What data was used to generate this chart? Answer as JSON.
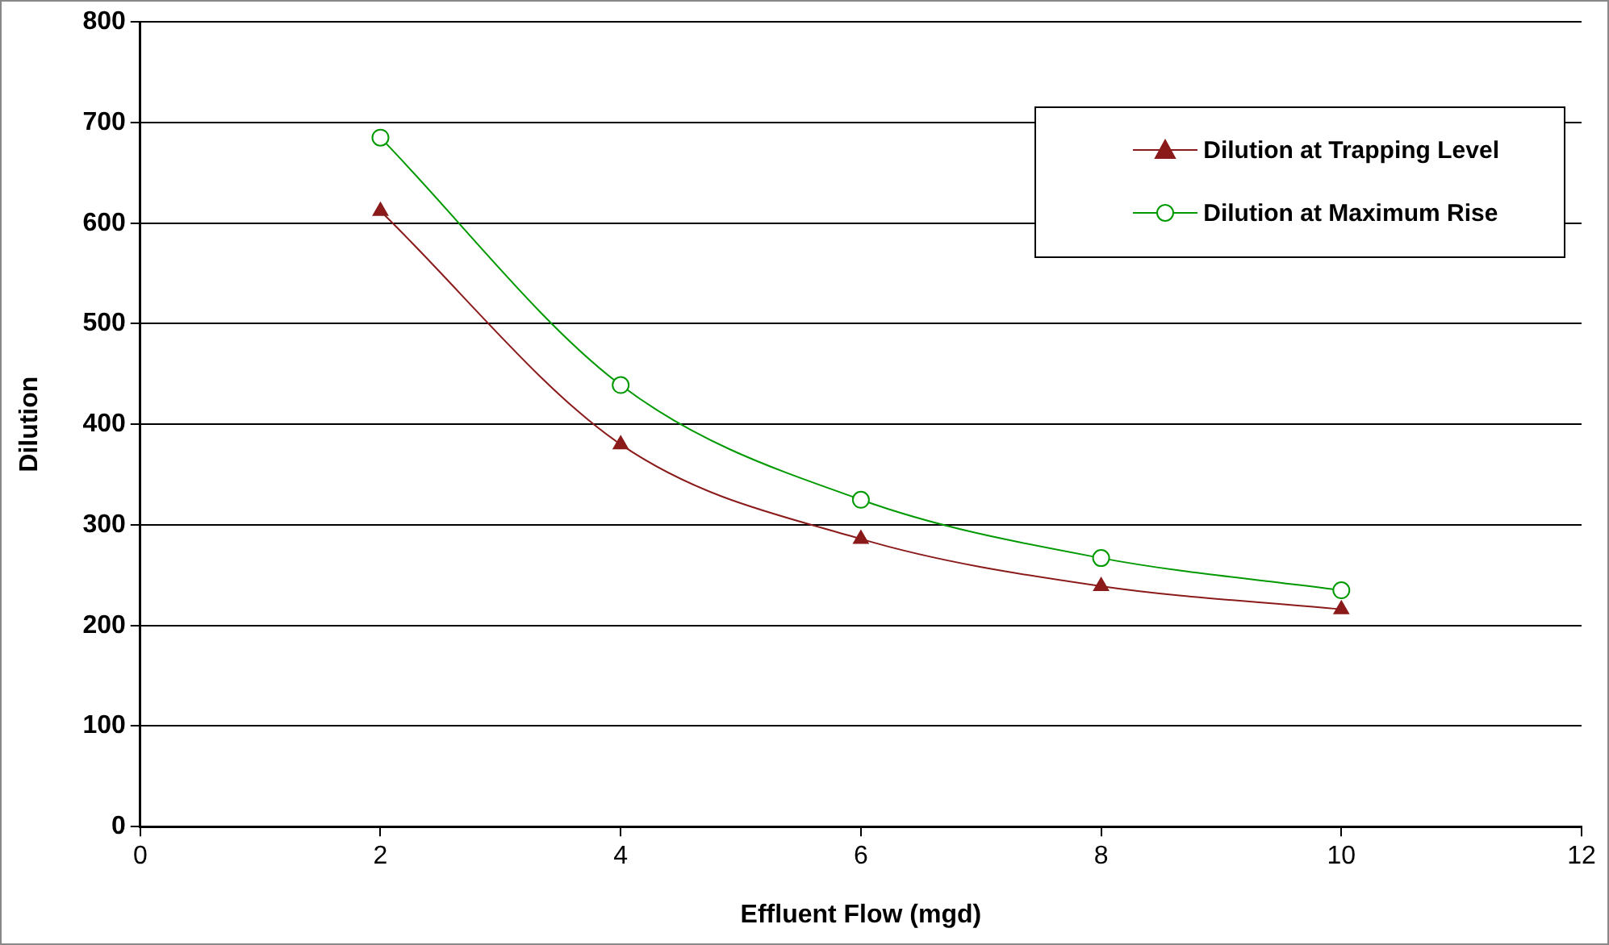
{
  "chart_data": {
    "type": "line",
    "xlabel": "Effluent Flow (mgd)",
    "ylabel": "Dilution",
    "x": [
      2,
      4,
      6,
      8,
      10
    ],
    "series": [
      {
        "name": "Dilution at Trapping Level",
        "color": "#8b1a1a",
        "marker": "triangle",
        "values": [
          612,
          380,
          286,
          239,
          216
        ]
      },
      {
        "name": "Dilution at Maximum Rise",
        "color": "#009900",
        "marker": "circle",
        "values": [
          685,
          439,
          325,
          267,
          235
        ]
      }
    ],
    "xlim": [
      0,
      12
    ],
    "xticks": [
      0,
      2,
      4,
      6,
      8,
      10,
      12
    ],
    "ylim": [
      0,
      800
    ],
    "yticks": [
      0,
      100,
      200,
      300,
      400,
      500,
      600,
      700,
      800
    ],
    "grid": "y",
    "legend": "top right",
    "line_style": "solid"
  }
}
